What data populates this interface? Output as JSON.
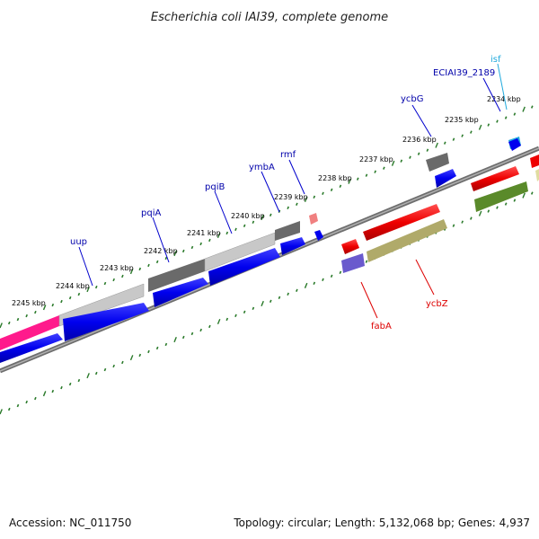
{
  "title": "Escherichia coli IAI39, complete genome",
  "footer": {
    "accession": "Accession: NC_011750",
    "summary": "Topology: circular; Length: 5,132,068 bp; Genes: 4,937"
  },
  "colors": {
    "tick": "#2a7a2a",
    "backbone": "#808080",
    "blue": "#0000ee",
    "red": "#ee0000",
    "grey": "#6a6a6a",
    "lightgrey": "#c8c8c8",
    "pink": "#ff1a8c",
    "olive": "#b0aa6a",
    "darkolive": "#5a8a2a",
    "slate": "#6a5acd",
    "cyan": "#22aadd",
    "salmon": "#f08080"
  },
  "tick_labels": [
    "2245 kbp",
    "2244 kbp",
    "2243 kbp",
    "2242 kbp",
    "2241 kbp",
    "2240 kbp",
    "2239 kbp",
    "2238 kbp",
    "2237 kbp",
    "2236 kbp",
    "2235 kbp",
    "2234 kbp"
  ],
  "gene_labels": [
    {
      "name": "uup",
      "color": "#0000aa"
    },
    {
      "name": "pqiA",
      "color": "#0000aa"
    },
    {
      "name": "pqiB",
      "color": "#0000aa"
    },
    {
      "name": "ymbA",
      "color": "#0000aa"
    },
    {
      "name": "rmf",
      "color": "#0000aa"
    },
    {
      "name": "ycbG",
      "color": "#0000aa"
    },
    {
      "name": "ECIAI39_2189",
      "color": "#0000aa"
    },
    {
      "name": "isf",
      "color": "#22aadd"
    },
    {
      "name": "fabA",
      "color": "#dd0000"
    },
    {
      "name": "ycbZ",
      "color": "#dd0000"
    }
  ]
}
